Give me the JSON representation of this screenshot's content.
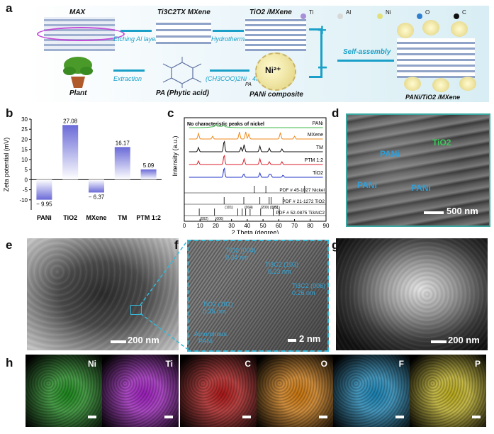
{
  "panel_labels": {
    "a": "a",
    "b": "b",
    "c": "c",
    "d": "d",
    "e": "e",
    "f": "f",
    "g": "g",
    "h": "h"
  },
  "schematic": {
    "max_label": "MAX",
    "mxene_label": "Ti3C2TX MXene",
    "tio2_mxene_label": "TiO2 /MXene",
    "plant_label": "Plant",
    "pa_label": "PA (Phytic acid)",
    "pani_composite_label": "PANi composite",
    "etching": "Etching Al layer",
    "hydrothermal": "Hydrothermal",
    "extraction": "Extraction",
    "reagent": "(CH3COO)2Ni · 4H2O",
    "self_assembly": "Self-assembly",
    "pa_small": "PA",
    "ni_ion": "Ni²⁺",
    "final_label": "PANi/TiO2 /MXene",
    "legend": [
      {
        "label": "Ti",
        "color": "#a98fd8"
      },
      {
        "label": "Al",
        "color": "#d8d8d8"
      },
      {
        "label": "Ni",
        "color": "#e3e07a"
      },
      {
        "label": "O",
        "color": "#2f7fd1"
      },
      {
        "label": "C",
        "color": "#111111"
      }
    ],
    "plus": "+",
    "minus": "−"
  },
  "chart_data": [
    {
      "type": "bar",
      "categories": [
        "PANi",
        "TiO2",
        "MXene",
        "TM",
        "PTM 1:2"
      ],
      "values": [
        -9.95,
        27.08,
        -6.37,
        16.17,
        5.09
      ],
      "value_labels": [
        "− 9.95",
        "27.08",
        "− 6.37",
        "16.17",
        "5.09"
      ],
      "ylabel": "Zeta potential (mV)",
      "ylim": [
        -15,
        30
      ],
      "yticks": [
        -10,
        -5,
        0,
        5,
        10,
        15,
        20,
        25,
        30
      ],
      "bar_color": "#6a6ad8"
    },
    {
      "type": "line",
      "xlabel": "2 Theta (degree)",
      "ylabel": "Intensity (a.u.)",
      "xlim": [
        0,
        90
      ],
      "xticks": [
        0,
        10,
        20,
        30,
        40,
        50,
        60,
        70,
        80,
        90
      ],
      "annotation": "No characteristic peaks of nickel",
      "series": [
        {
          "name": "PANi",
          "color": "#3cb84a"
        },
        {
          "name": "MXene",
          "color": "#f08a1c"
        },
        {
          "name": "TM",
          "color": "#111111"
        },
        {
          "name": "PTM 1:2",
          "color": "#d81e2a"
        },
        {
          "name": "TiO2",
          "color": "#2233c8"
        }
      ],
      "references": [
        {
          "label": "PDF # 45-1027 Nickel",
          "peaks": [
            44.5,
            51.8,
            76.4
          ]
        },
        {
          "label": "PDF # 21-1272 TiO2",
          "peaks": [
            25.3,
            37.8,
            48.0,
            53.9,
            55.1,
            62.7
          ],
          "hkl": [
            "(101)",
            "(004)",
            "(200)",
            "(105)",
            "(211)"
          ]
        },
        {
          "label": "PDF # 52-0875 Ti3AlC2",
          "peaks": [
            9.5,
            19.2,
            34.0,
            36.8,
            39.0,
            41.8,
            48.5,
            56.5,
            60.3
          ],
          "hkl": [
            "(002)",
            "(006)"
          ]
        }
      ]
    }
  ],
  "micrographs": {
    "d_scale": "500 nm",
    "d_labels": [
      "PANi",
      "TiO2",
      "PANi",
      "PANi"
    ],
    "e_scale": "200 nm",
    "f_scale": "2 nm",
    "f_labels": [
      "TiO2 (004)",
      "0.24 nm",
      "Ti3C2 (103)",
      "0.23 nm",
      "Ti3C2 (006)",
      "0.26 nm",
      "TiO2 (101)",
      "0.35 nm",
      "Amorphous",
      "PANi"
    ],
    "g_scale": "200 nm",
    "eds": [
      {
        "label": "Ni",
        "color": "#1e8c1e"
      },
      {
        "label": "Ti",
        "color": "#a020c0"
      },
      {
        "label": "C",
        "color": "#b01818"
      },
      {
        "label": "O",
        "color": "#d07a10"
      },
      {
        "label": "F",
        "color": "#1b86b8"
      },
      {
        "label": "P",
        "color": "#c0b020"
      }
    ]
  }
}
